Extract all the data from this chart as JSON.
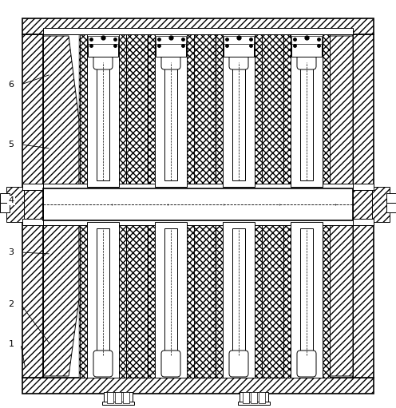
{
  "fig_width": 4.96,
  "fig_height": 5.11,
  "dpi": 100,
  "bg_color": "#ffffff",
  "lc": "#000000",
  "lw": 0.7,
  "tlw": 1.2
}
